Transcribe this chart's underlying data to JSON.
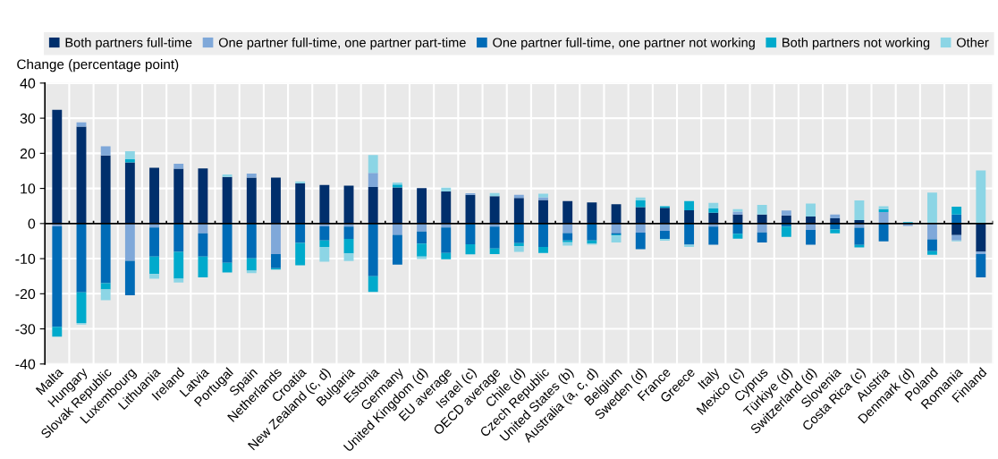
{
  "chart_data": {
    "type": "bar",
    "stacked": true,
    "ylabel": "Change (percentage point)",
    "categories": [
      "Malta",
      "Hungary",
      "Slovak Republic",
      "Luxembourg",
      "Lithuania",
      "Ireland",
      "Latvia",
      "Portugal",
      "Spain",
      "Netherlands",
      "Croatia",
      "New Zealand (c, d)",
      "Bulgaria",
      "Estonia",
      "Germany",
      "United Kingdom (d)",
      "EU average",
      "Israel (c)",
      "OECD average",
      "Chile (d)",
      "Czech Republic",
      "United States (b)",
      "Australia (a, c, d)",
      "Belgium",
      "Sweden (d)",
      "France",
      "Greece",
      "Italy",
      "Mexico (c)",
      "Cyprus",
      "Türkiye (d)",
      "Switzerland (d)",
      "Slovenia",
      "Costa Rica (c)",
      "Austria",
      "Denmark (d)",
      "Poland",
      "Romania",
      "Finland"
    ],
    "series": [
      {
        "name": "Both partners full-time",
        "color": "#002f6c",
        "values": [
          32.4,
          27.6,
          19.4,
          17.4,
          15.9,
          15.6,
          15.7,
          13.3,
          13.1,
          13.1,
          11.4,
          11.0,
          10.8,
          10.4,
          10.3,
          10.1,
          9.1,
          8.2,
          7.8,
          7.3,
          6.7,
          6.4,
          6.0,
          5.5,
          4.7,
          4.5,
          3.8,
          3.1,
          2.6,
          2.6,
          2.3,
          2.0,
          1.5,
          1.0,
          null,
          null,
          null,
          -3.3,
          -8.0
        ]
      },
      {
        "name": "One partner full-time, one partner part-time",
        "color": "#7fa8d9",
        "values": [
          -0.8,
          1.2,
          2.6,
          -10.6,
          -1.1,
          1.4,
          -2.8,
          null,
          1.1,
          -8.7,
          null,
          -0.8,
          -0.9,
          4.0,
          -3.2,
          -2.3,
          -1.1,
          0.4,
          -0.9,
          0.9,
          0.8,
          -2.7,
          null,
          -2.7,
          -2.6,
          -2.1,
          null,
          -0.9,
          0.8,
          -2.5,
          1.4,
          -1.8,
          1.1,
          -1.2,
          3.3,
          -0.7,
          -4.5,
          -1.5,
          -0.7
        ]
      },
      {
        "name": "One partner full-time, one partner not working",
        "color": "#006bb6",
        "values": [
          -28.6,
          -19.6,
          -17.0,
          -9.8,
          -8.3,
          -8.1,
          -6.6,
          -11.2,
          -9.9,
          -4.0,
          -5.5,
          -4.0,
          -3.5,
          -15.0,
          -8.5,
          -3.4,
          -7.3,
          -5.9,
          -6.2,
          -5.6,
          -6.7,
          -2.1,
          -4.8,
          -0.4,
          -4.7,
          -2.3,
          -6.0,
          -5.1,
          -2.9,
          -2.9,
          -0.9,
          -4.2,
          -1.7,
          -4.9,
          -5.1,
          null,
          -3.4,
          2.6,
          -6.6
        ]
      },
      {
        "name": "Both partners not working",
        "color": "#00aacc",
        "values": [
          -2.8,
          -8.7,
          -1.8,
          0.9,
          -5.0,
          -7.6,
          -5.9,
          -2.7,
          -3.5,
          -0.4,
          -6.4,
          -1.9,
          -4.1,
          -4.5,
          0.8,
          -3.7,
          -1.8,
          -2.9,
          -1.6,
          -0.9,
          -1.7,
          -0.5,
          -0.9,
          -0.3,
          1.9,
          0.4,
          2.6,
          1.2,
          -1.4,
          null,
          -2.9,
          null,
          -1.1,
          -0.7,
          0.8,
          0.4,
          -1.0,
          2.2,
          null
        ]
      },
      {
        "name": "Other",
        "color": "#8cd5e5",
        "values": [
          null,
          -0.5,
          -3.0,
          2.3,
          -1.3,
          -1.1,
          null,
          0.7,
          -0.7,
          null,
          0.6,
          -4.2,
          -2.2,
          5.1,
          0.6,
          -0.7,
          1.1,
          null,
          0.9,
          -1.6,
          1.0,
          -1.0,
          -0.3,
          -2.0,
          0.8,
          -0.5,
          -0.7,
          1.6,
          0.7,
          2.7,
          null,
          3.7,
          null,
          5.6,
          0.8,
          null,
          8.8,
          -0.3,
          15.1
        ]
      }
    ],
    "ylim": [
      -40,
      40
    ],
    "yticks": [
      -40,
      -30,
      -20,
      -10,
      0,
      10,
      20,
      30,
      40
    ],
    "grid": true,
    "legend": "top"
  }
}
